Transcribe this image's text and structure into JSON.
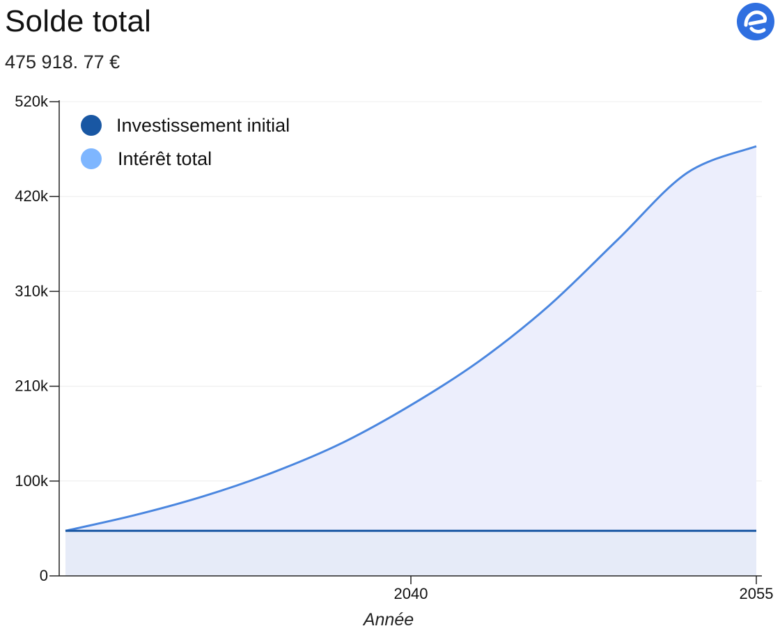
{
  "header": {
    "title": "Solde total",
    "balance": "475 918. 77 €"
  },
  "logo": {
    "icon": "e-logo-icon",
    "color": "#2f6fe0"
  },
  "colors": {
    "initial_investment": "#1957a3",
    "total_interest": "#7eb6ff",
    "interest_line": "#4a86df",
    "interest_fill": "#eceefc",
    "initial_fill": "#e6ebf8",
    "grid": "#ececec"
  },
  "chart_data": {
    "type": "area",
    "xlabel": "Année",
    "ylabel": "",
    "ylim": [
      0,
      500000
    ],
    "xlim": [
      2025,
      2055
    ],
    "x_ticks": [
      "2040",
      "2055"
    ],
    "y_ticks": [
      "0",
      "100k",
      "210k",
      "310k",
      "420k",
      "520k"
    ],
    "grid": true,
    "legend_position": "top-left",
    "series": [
      {
        "name": "Investissement initial",
        "x": [
          2025,
          2055
        ],
        "values": [
          47500,
          47500
        ]
      },
      {
        "name": "Intérêt total",
        "x": [
          2025,
          2028,
          2031,
          2034,
          2037,
          2040,
          2043,
          2046,
          2049,
          2052,
          2055
        ],
        "values": [
          47500,
          64000,
          84000,
          109000,
          140000,
          180000,
          227000,
          285000,
          355000,
          425000,
          453000
        ]
      }
    ]
  }
}
